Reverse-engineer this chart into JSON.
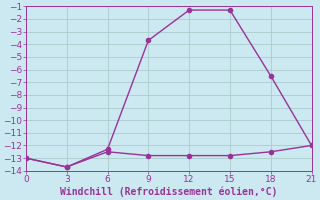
{
  "xlabel": "Windchill (Refroidissement éolien,°C)",
  "line1_x": [
    0,
    3,
    6,
    9,
    12,
    15,
    18,
    21
  ],
  "line1_y": [
    -13.0,
    -13.7,
    -12.5,
    -12.8,
    -12.8,
    -12.8,
    -12.5,
    -12.0
  ],
  "line2_x": [
    0,
    3,
    6,
    9,
    12,
    15,
    18,
    21
  ],
  "line2_y": [
    -13.0,
    -13.7,
    -12.3,
    -3.7,
    -1.3,
    -1.3,
    -6.5,
    -12.0
  ],
  "xlim": [
    0,
    21
  ],
  "ylim": [
    -14,
    -1
  ],
  "xticks": [
    0,
    3,
    6,
    9,
    12,
    15,
    18,
    21
  ],
  "yticks": [
    -14,
    -13,
    -12,
    -11,
    -10,
    -9,
    -8,
    -7,
    -6,
    -5,
    -4,
    -3,
    -2,
    -1
  ],
  "line_color": "#993399",
  "bg_color": "#cce8f0",
  "grid_color": "#aacccc",
  "marker": "o",
  "marker_size": 3,
  "linewidth": 1.0,
  "xlabel_fontsize": 7,
  "tick_fontsize": 6.5
}
